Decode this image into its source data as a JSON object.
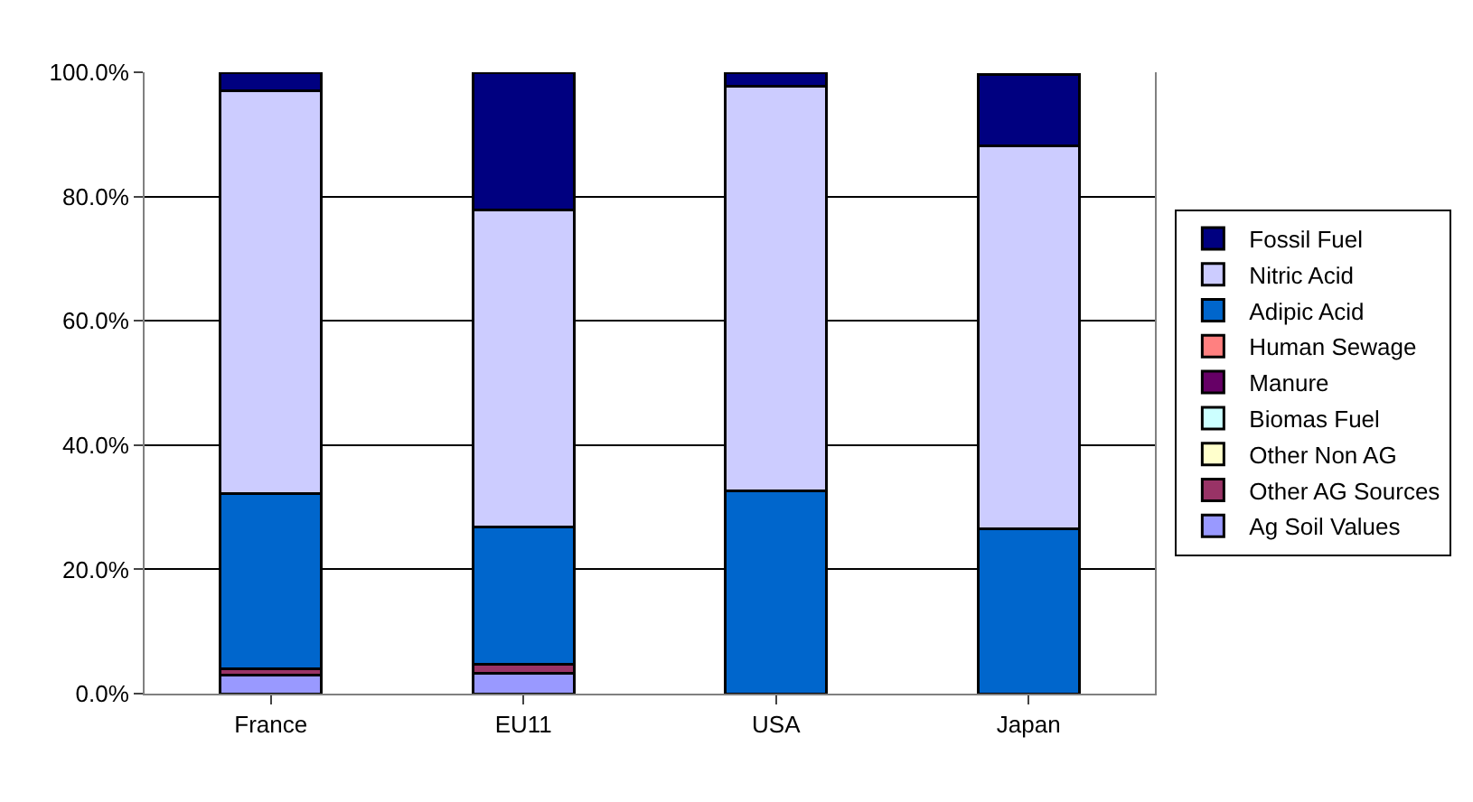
{
  "chart_data": {
    "type": "bar",
    "stacked": true,
    "categories": [
      "France",
      "EU11",
      "USA",
      "Japan"
    ],
    "series": [
      {
        "name": "Ag Soil Values",
        "color": "#9999ff",
        "values": [
          3.0,
          3.3,
          0,
          null
        ]
      },
      {
        "name": "Other AG Sources",
        "color": "#993366",
        "values": [
          1.0,
          1.4,
          0,
          0
        ]
      },
      {
        "name": "Other Non AG",
        "color": "#ffffcc",
        "values": [
          0,
          0,
          0,
          0
        ]
      },
      {
        "name": "Biomas Fuel",
        "color": "#ccffff",
        "values": [
          0,
          0,
          0,
          0
        ]
      },
      {
        "name": "Manure",
        "color": "#660066",
        "values": [
          0,
          0,
          0,
          0
        ]
      },
      {
        "name": "Human Sewage",
        "color": "#ff8080",
        "values": [
          0,
          0,
          0,
          0
        ]
      },
      {
        "name": "Adipic Acid",
        "color": "#0066cc",
        "values": [
          28.2,
          22.1,
          32.7,
          26.6
        ]
      },
      {
        "name": "Nitric Acid",
        "color": "#ccccff",
        "values": [
          64.8,
          51.0,
          65.1,
          61.6
        ]
      },
      {
        "name": "Fossil Fuel",
        "color": "#000080",
        "values": [
          3.0,
          22.2,
          2.2,
          11.5
        ]
      }
    ],
    "ylim": [
      0,
      100
    ],
    "yticks": [
      {
        "value": 0,
        "label": "0.0%"
      },
      {
        "value": 20,
        "label": "20.0%"
      },
      {
        "value": 40,
        "label": "40.0%"
      },
      {
        "value": 60,
        "label": "60.0%"
      },
      {
        "value": 80,
        "label": "80.0%"
      },
      {
        "value": 100,
        "label": "100.0%"
      }
    ],
    "grid": "y",
    "legend": "right"
  }
}
